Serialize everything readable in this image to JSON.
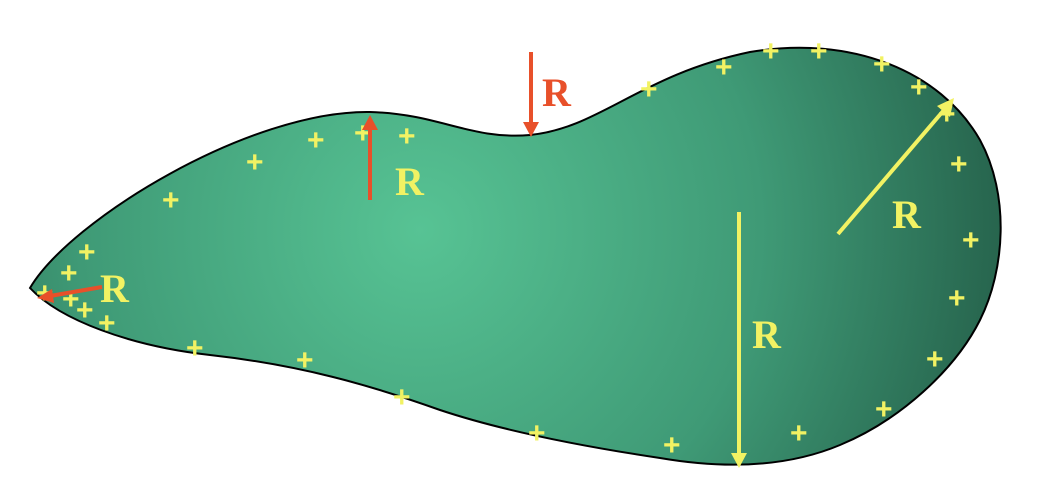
{
  "colors": {
    "body_light": "#57c394",
    "body_mid": "#3f9a76",
    "body_dark": "#235c47",
    "outline": "#000000",
    "charge": "#f2f263",
    "arrow_yellow": "#f2f263",
    "arrow_red": "#e8502a"
  },
  "charge_symbol": "+",
  "radius_label": "R",
  "labels": {
    "r_top_notch": "R",
    "r_small_bump": "R",
    "r_left_tip": "R",
    "r_right_lobe": "R",
    "r_bottom_large": "R"
  }
}
